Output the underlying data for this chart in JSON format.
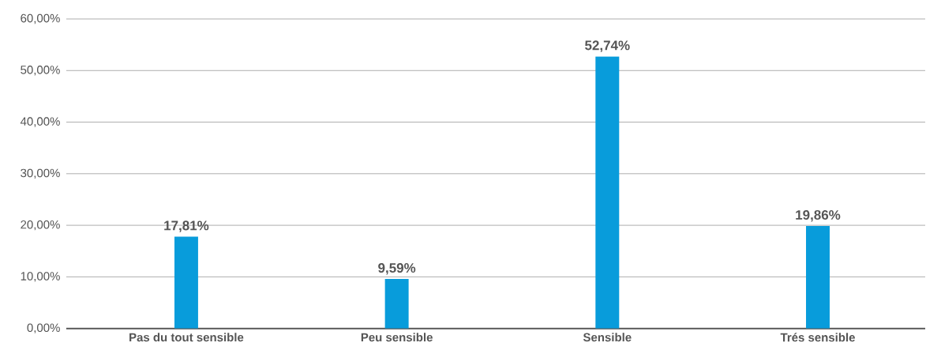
{
  "chart_data": {
    "type": "bar",
    "categories": [
      "Pas du tout sensible",
      "Peu sensible",
      "Sensible",
      "Trés sensible"
    ],
    "values": [
      17.81,
      9.59,
      52.74,
      19.86
    ],
    "value_labels": [
      "17,81%",
      "9,59%",
      "52,74%",
      "19,86%"
    ],
    "color": "#089cdb",
    "ylim": [
      0,
      60
    ],
    "yticks": [
      {
        "value": 0,
        "label": "0,00%"
      },
      {
        "value": 10,
        "label": "10,00%"
      },
      {
        "value": 20,
        "label": "20,00%"
      },
      {
        "value": 30,
        "label": "30,00%"
      },
      {
        "value": 40,
        "label": "40,00%"
      },
      {
        "value": 50,
        "label": "50,00%"
      },
      {
        "value": 60,
        "label": "60,00%"
      }
    ],
    "grid": "y"
  }
}
